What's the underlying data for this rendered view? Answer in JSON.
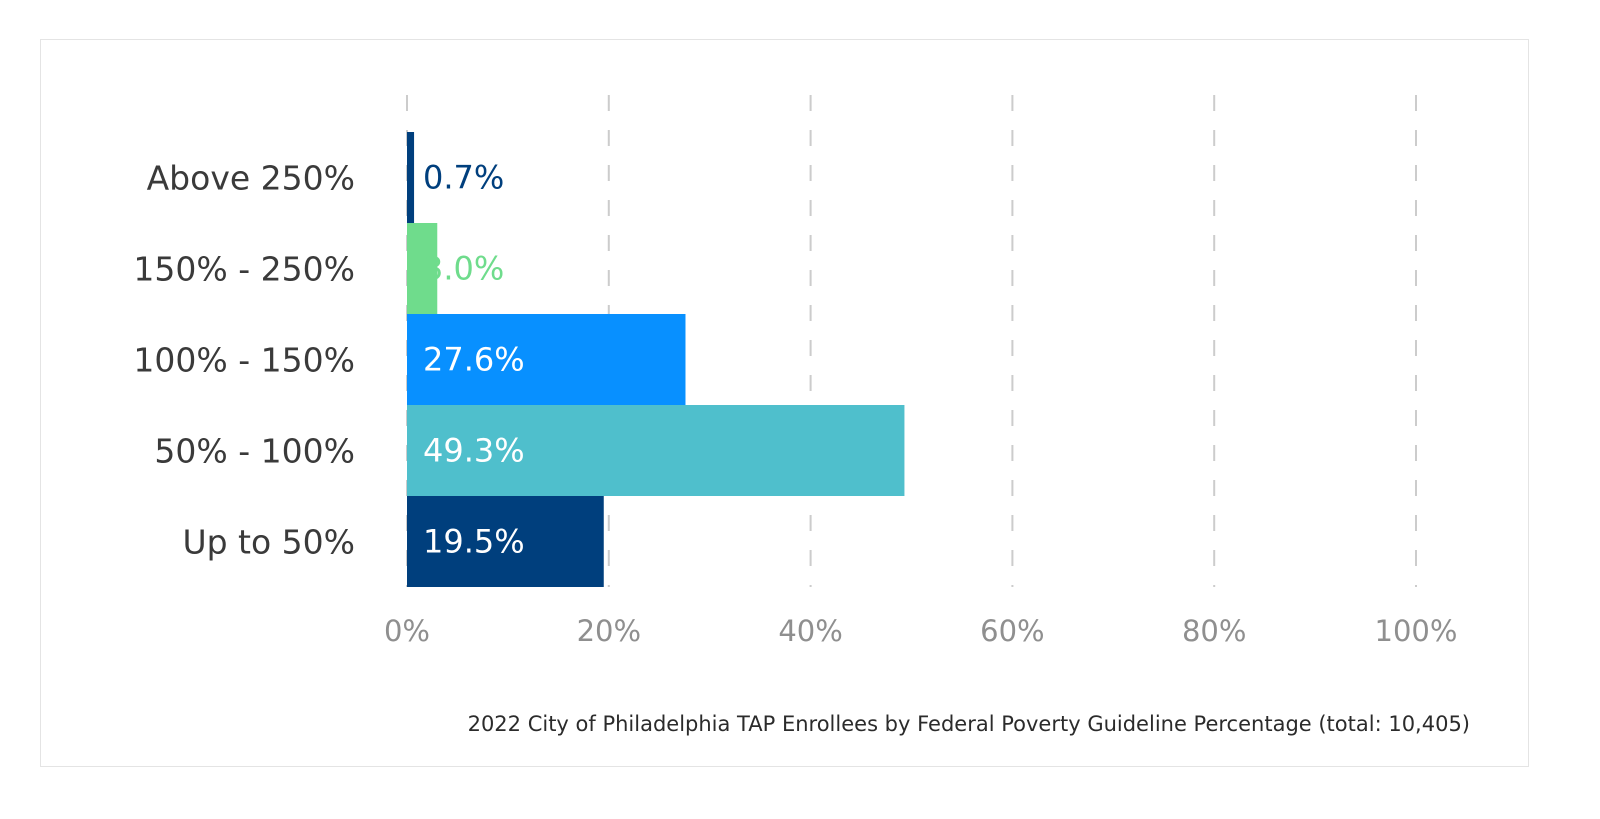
{
  "chart_data": {
    "type": "bar",
    "orientation": "horizontal",
    "caption": "2022 City of Philadelphia TAP Enrollees by Federal Poverty Guideline Percentage (total: 10,405)",
    "categories": [
      "Above 250%",
      "150% - 250%",
      "100% - 150%",
      "50% - 100%",
      "Up to 50%"
    ],
    "values": [
      0.7,
      3.0,
      27.6,
      49.3,
      19.5
    ],
    "value_labels": [
      "0.7%",
      "3.0%",
      "27.6%",
      "49.3%",
      "19.5%"
    ],
    "bar_colors": [
      "#003f7d",
      "#6fdc8c",
      "#0890ff",
      "#4fbfcc",
      "#003f7d"
    ],
    "label_colors": [
      "#003f7d",
      "#6fdc8c",
      "#ffffff",
      "#ffffff",
      "#ffffff"
    ],
    "xlim": [
      0,
      100
    ],
    "xticks": [
      0,
      20,
      40,
      60,
      80,
      100
    ],
    "xtick_labels": [
      "0%",
      "20%",
      "40%",
      "60%",
      "80%",
      "100%"
    ],
    "grid": "vertical-dashed",
    "legend": "none",
    "colors": {
      "grid": "#cccccc",
      "frame_border": "#e4e4e4"
    }
  }
}
